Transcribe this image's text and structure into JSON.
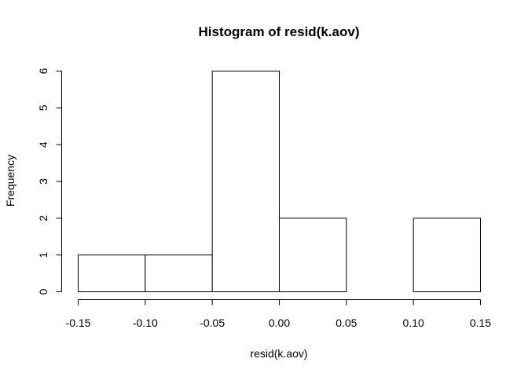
{
  "chart_data": {
    "type": "bar",
    "title": "Histogram of resid(k.aov)",
    "xlabel": "resid(k.aov)",
    "ylabel": "Frequency",
    "breaks": [
      -0.15,
      -0.1,
      -0.05,
      0.0,
      0.05,
      0.1,
      0.15
    ],
    "counts": [
      1,
      1,
      6,
      2,
      0,
      2
    ],
    "xlim": [
      -0.15,
      0.15
    ],
    "ylim": [
      0,
      6
    ],
    "x_ticks": [
      "-0.15",
      "-0.10",
      "-0.05",
      "0.00",
      "0.05",
      "0.10",
      "0.15"
    ],
    "y_ticks": [
      "0",
      "1",
      "2",
      "3",
      "4",
      "5",
      "6"
    ],
    "grid": false,
    "bar_fill": "#ffffff",
    "bar_stroke": "#000000"
  }
}
